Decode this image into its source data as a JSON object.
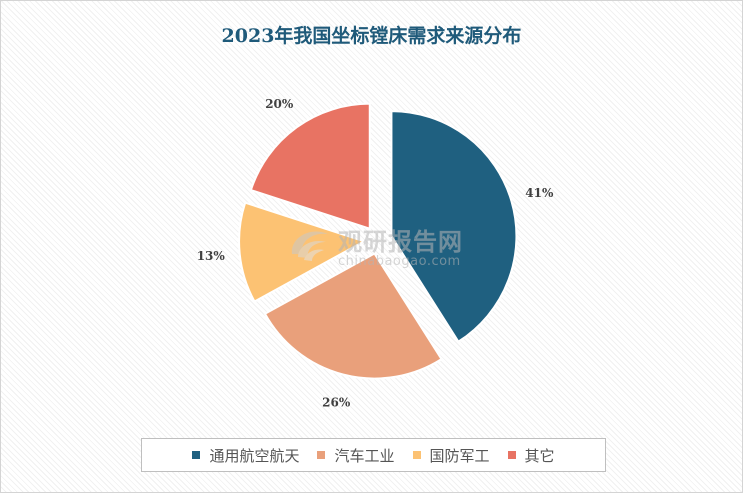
{
  "chart_data": {
    "type": "pie",
    "title": "2023年我国坐标镗床需求来源分布",
    "categories": [
      "通用航空航天",
      "汽车工业",
      "国防军工",
      "其它"
    ],
    "values": [
      41,
      26,
      13,
      20
    ],
    "value_labels": [
      "41%",
      "26%",
      "13%",
      "20%"
    ],
    "colors": [
      "#1f6080",
      "#e9a07b",
      "#fcc273",
      "#e87363"
    ],
    "exploded": true,
    "legend_position": "bottom"
  },
  "watermark": {
    "text_cn": "观研报告网",
    "text_en": "chinabaogao.com"
  }
}
